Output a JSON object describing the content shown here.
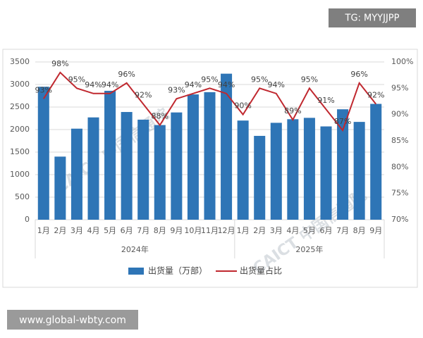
{
  "chart_data": {
    "type": "bar-line",
    "categories": [
      "1月",
      "2月",
      "3月",
      "4月",
      "5月",
      "6月",
      "7月",
      "8月",
      "9月",
      "10月",
      "11月",
      "12月",
      "1月",
      "2月",
      "3月",
      "4月",
      "5月",
      "6月",
      "7月",
      "8月",
      "9月"
    ],
    "groups": [
      "2024年",
      "2025年"
    ],
    "series": [
      {
        "name": "出货量（万部）",
        "type": "bar",
        "color": "#2e75b6",
        "values": [
          2950,
          1400,
          2020,
          2270,
          2860,
          2390,
          2220,
          2100,
          2380,
          2780,
          2830,
          3240,
          2200,
          1860,
          2150,
          2230,
          2260,
          2070,
          2450,
          2170,
          2570
        ]
      },
      {
        "name": "出货量占比",
        "type": "line",
        "axis": "y2",
        "color": "#c0282f",
        "values": [
          93,
          98,
          95,
          94,
          94,
          96,
          92,
          88,
          93,
          94,
          95,
          94,
          90,
          95,
          94,
          89,
          95,
          91,
          87,
          96,
          92
        ],
        "value_labels": [
          "93%",
          "98%",
          "95%",
          "94%",
          "94%",
          "96%",
          "92%",
          "88%",
          "93%",
          "94%",
          "95%",
          "94%",
          "90%",
          "95%",
          "94%",
          "89%",
          "95%",
          "91%",
          "87%",
          "96%",
          "92%"
        ]
      }
    ],
    "ylim": [
      0,
      3500
    ],
    "yticks": [
      0,
      500,
      1000,
      1500,
      2000,
      2500,
      3000,
      3500
    ],
    "y2lim": [
      70,
      100
    ],
    "y2ticks": [
      {
        "value": 70,
        "label": "70%"
      },
      {
        "value": 75,
        "label": "75%"
      },
      {
        "value": 80,
        "label": "80%"
      },
      {
        "value": 85,
        "label": "85%"
      },
      {
        "value": 90,
        "label": "90%"
      },
      {
        "value": 95,
        "label": "95%"
      },
      {
        "value": 100,
        "label": "100%"
      }
    ],
    "grid": true,
    "legend": "bottom",
    "watermark": "CAICT 中国信通院"
  },
  "overlays": [
    "TG: MYYJJPP",
    "www.global-wbty.com"
  ]
}
